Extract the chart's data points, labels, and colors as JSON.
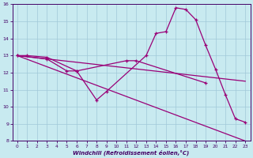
{
  "background_color": "#c8eaf0",
  "grid_color": "#a0c8d8",
  "line_color": "#990077",
  "xlabel": "Windchill (Refroidissement éolien,°C)",
  "ylim": [
    8,
    16
  ],
  "xlim": [
    -0.5,
    23.5
  ],
  "yticks": [
    8,
    9,
    10,
    11,
    12,
    13,
    14,
    15,
    16
  ],
  "xticks": [
    0,
    1,
    2,
    3,
    4,
    5,
    6,
    7,
    8,
    9,
    10,
    11,
    12,
    13,
    14,
    15,
    16,
    17,
    18,
    19,
    20,
    21,
    22,
    23
  ],
  "curve1_x": [
    0,
    1,
    3,
    6,
    8,
    9,
    13,
    14,
    15,
    16,
    17,
    18,
    19,
    20,
    21,
    22,
    23
  ],
  "curve1_y": [
    13.0,
    13.0,
    12.9,
    12.1,
    10.4,
    10.9,
    13.0,
    14.3,
    14.4,
    15.8,
    15.7,
    15.1,
    13.6,
    12.2,
    10.7,
    9.3,
    9.1
  ],
  "curve2_x": [
    0,
    3,
    5,
    6,
    11,
    12,
    19
  ],
  "curve2_y": [
    13.0,
    12.8,
    12.1,
    12.1,
    12.7,
    12.7,
    11.4
  ],
  "curve3_x": [
    0,
    23
  ],
  "curve3_y": [
    13.0,
    11.5
  ],
  "curve4_x": [
    0,
    23
  ],
  "curve4_y": [
    13.0,
    8.0
  ]
}
